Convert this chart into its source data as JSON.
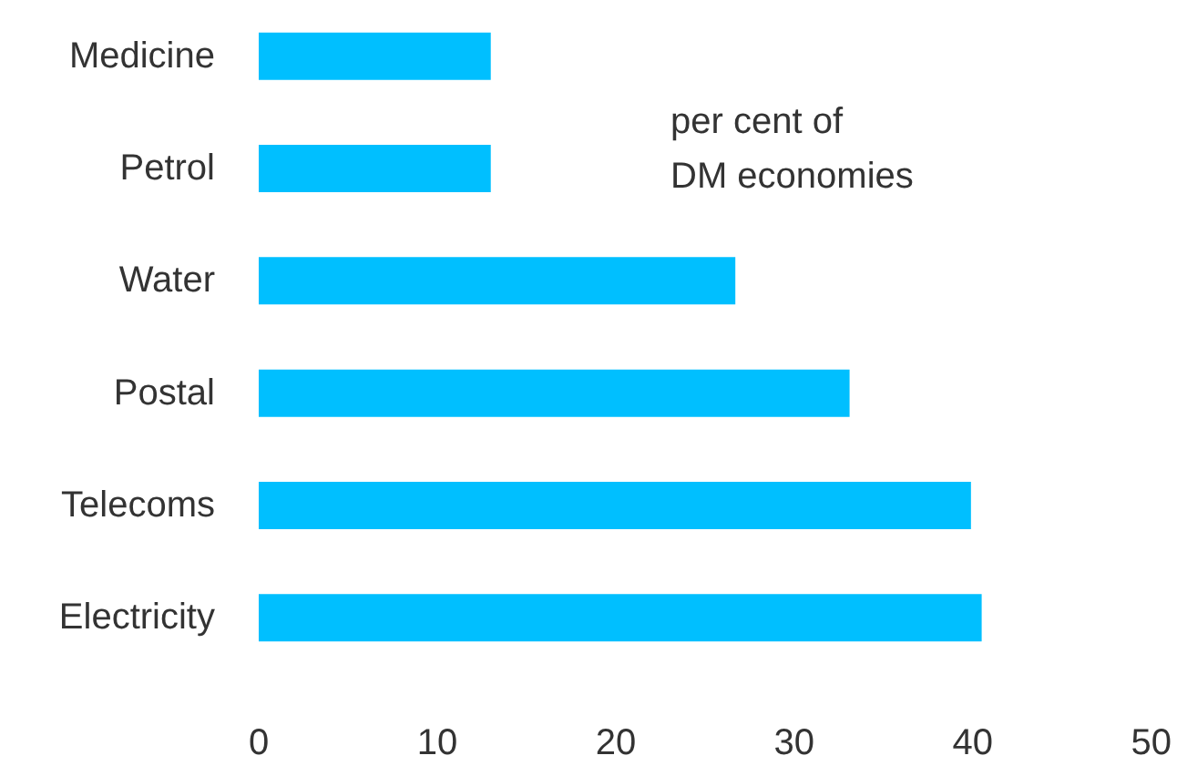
{
  "chart_data": {
    "type": "bar",
    "orientation": "horizontal",
    "categories": [
      "Medicine",
      "Petrol",
      "Water",
      "Postal",
      "Telecoms",
      "Electricity"
    ],
    "values": [
      13,
      13,
      26.7,
      33.1,
      39.9,
      40.5
    ],
    "color": "#00bfff",
    "xlim": [
      0,
      50
    ],
    "xticks": [
      0,
      10,
      20,
      30,
      40,
      50
    ],
    "annotations": [
      "per cent of\nDM economies"
    ]
  }
}
